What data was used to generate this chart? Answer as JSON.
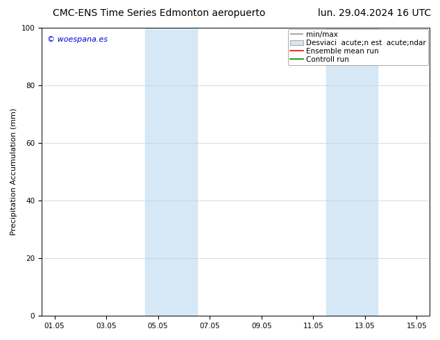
{
  "title_left": "CMC-ENS Time Series Edmonton aeropuerto",
  "title_right": "lun. 29.04.2024 16 UTC",
  "ylabel": "Precipitation Accumulation (mm)",
  "watermark": "© woespana.es",
  "watermark_color": "#0000cc",
  "ylim": [
    0,
    100
  ],
  "yticks": [
    0,
    20,
    40,
    60,
    80,
    100
  ],
  "xtick_labels": [
    "01.05",
    "03.05",
    "05.05",
    "07.05",
    "09.05",
    "11.05",
    "13.05",
    "15.05"
  ],
  "xtick_positions": [
    0,
    2,
    4,
    6,
    8,
    10,
    12,
    14
  ],
  "xlim": [
    -0.5,
    14.5
  ],
  "shaded_regions": [
    {
      "start": 3.5,
      "end": 5.5
    },
    {
      "start": 10.5,
      "end": 12.5
    }
  ],
  "shade_color": "#d6e8f5",
  "background_color": "#ffffff",
  "title_fontsize": 10,
  "axis_label_fontsize": 8,
  "tick_fontsize": 7.5,
  "legend_fontsize": 7.5,
  "watermark_fontsize": 8
}
